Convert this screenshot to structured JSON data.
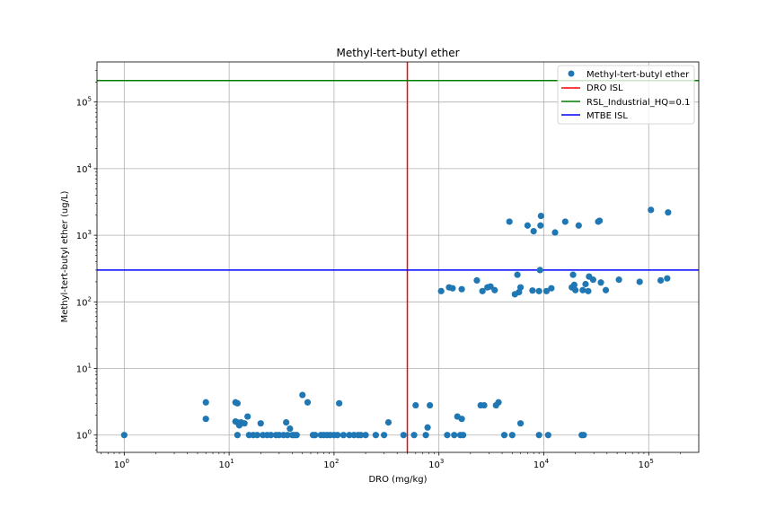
{
  "chart_data": {
    "type": "scatter",
    "title": "Methyl-tert-butyl ether",
    "xlabel": "DRO (mg/kg)",
    "ylabel": "Methyl-tert-butyl ether (ug/L)",
    "xscale": "log",
    "yscale": "log",
    "xlim": [
      0.55,
      300000
    ],
    "ylim": [
      0.55,
      400000
    ],
    "x_ticks": [
      {
        "value": 1,
        "base": "10",
        "exp": "0"
      },
      {
        "value": 10,
        "base": "10",
        "exp": "1"
      },
      {
        "value": 100,
        "base": "10",
        "exp": "2"
      },
      {
        "value": 1000,
        "base": "10",
        "exp": "3"
      },
      {
        "value": 10000,
        "base": "10",
        "exp": "4"
      },
      {
        "value": 100000,
        "base": "10",
        "exp": "5"
      }
    ],
    "y_ticks": [
      {
        "value": 1,
        "base": "10",
        "exp": "0"
      },
      {
        "value": 10,
        "base": "10",
        "exp": "1"
      },
      {
        "value": 100,
        "base": "10",
        "exp": "2"
      },
      {
        "value": 1000,
        "base": "10",
        "exp": "3"
      },
      {
        "value": 10000,
        "base": "10",
        "exp": "4"
      },
      {
        "value": 100000,
        "base": "10",
        "exp": "5"
      }
    ],
    "grid": true,
    "legend_position": "top-right",
    "series": [
      {
        "name": "Methyl-tert-butyl ether",
        "color": "#1f77b4",
        "marker": "circle",
        "points": [
          [
            1,
            1
          ],
          [
            6,
            3.1
          ],
          [
            6,
            1.75
          ],
          [
            11.5,
            3.1
          ],
          [
            12,
            3
          ],
          [
            11.5,
            1.6
          ],
          [
            12,
            1.55
          ],
          [
            12.5,
            1.4
          ],
          [
            13,
            1.55
          ],
          [
            14,
            1.5
          ],
          [
            15,
            1.9
          ],
          [
            12,
            1
          ],
          [
            15.5,
            1
          ],
          [
            17,
            1
          ],
          [
            18.5,
            1
          ],
          [
            20,
            1.5
          ],
          [
            21,
            1
          ],
          [
            23,
            1
          ],
          [
            25,
            1
          ],
          [
            28,
            1
          ],
          [
            30,
            1
          ],
          [
            33,
            1
          ],
          [
            35,
            1.55
          ],
          [
            36,
            1
          ],
          [
            38,
            1.25
          ],
          [
            40,
            1
          ],
          [
            42,
            1
          ],
          [
            44,
            1
          ],
          [
            50,
            4
          ],
          [
            56,
            3.1
          ],
          [
            63,
            1
          ],
          [
            66,
            1
          ],
          [
            75,
            1
          ],
          [
            80,
            1
          ],
          [
            86,
            1
          ],
          [
            92,
            1
          ],
          [
            100,
            1
          ],
          [
            108,
            1
          ],
          [
            112,
            3
          ],
          [
            123,
            1
          ],
          [
            140,
            1
          ],
          [
            155,
            1
          ],
          [
            170,
            1
          ],
          [
            180,
            1
          ],
          [
            200,
            1
          ],
          [
            250,
            1
          ],
          [
            300,
            1
          ],
          [
            330,
            1.55
          ],
          [
            460,
            1
          ],
          [
            580,
            1
          ],
          [
            600,
            2.8
          ],
          [
            750,
            1
          ],
          [
            780,
            1.3
          ],
          [
            820,
            2.8
          ],
          [
            1200,
            1
          ],
          [
            1400,
            1
          ],
          [
            1500,
            1.9
          ],
          [
            1600,
            1
          ],
          [
            1650,
            1.75
          ],
          [
            1700,
            1
          ],
          [
            2500,
            2.8
          ],
          [
            2700,
            2.8
          ],
          [
            3500,
            2.8
          ],
          [
            3700,
            3.1
          ],
          [
            4200,
            1
          ],
          [
            5000,
            1
          ],
          [
            6000,
            1.5
          ],
          [
            9000,
            1
          ],
          [
            11000,
            1
          ],
          [
            23000,
            1
          ],
          [
            24000,
            1
          ],
          [
            1050,
            145
          ],
          [
            1250,
            165
          ],
          [
            1350,
            160
          ],
          [
            1650,
            155
          ],
          [
            2300,
            210
          ],
          [
            2600,
            145
          ],
          [
            2900,
            165
          ],
          [
            3100,
            170
          ],
          [
            3400,
            150
          ],
          [
            4700,
            1600
          ],
          [
            5300,
            130
          ],
          [
            5600,
            255
          ],
          [
            5800,
            140
          ],
          [
            6000,
            165
          ],
          [
            7000,
            1400
          ],
          [
            7800,
            148
          ],
          [
            8000,
            1150
          ],
          [
            9000,
            145
          ],
          [
            9200,
            300
          ],
          [
            9300,
            1400
          ],
          [
            9400,
            1950
          ],
          [
            10600,
            145
          ],
          [
            11800,
            160
          ],
          [
            12800,
            1100
          ],
          [
            16000,
            1600
          ],
          [
            18500,
            165
          ],
          [
            19000,
            255
          ],
          [
            19500,
            180
          ],
          [
            20000,
            150
          ],
          [
            21500,
            1400
          ],
          [
            23500,
            150
          ],
          [
            25000,
            185
          ],
          [
            26500,
            145
          ],
          [
            27000,
            240
          ],
          [
            29500,
            215
          ],
          [
            33000,
            1600
          ],
          [
            34000,
            1650
          ],
          [
            35000,
            195
          ],
          [
            39000,
            150
          ],
          [
            52000,
            215
          ],
          [
            82000,
            200
          ],
          [
            105000,
            2400
          ],
          [
            130000,
            210
          ],
          [
            150000,
            225
          ],
          [
            153000,
            2200
          ]
        ]
      },
      {
        "name": "DRO ISL",
        "color": "#ff0000",
        "type": "vline",
        "x": 500
      },
      {
        "name": "RSL_Industrial_HQ=0.1",
        "color": "#008000",
        "type": "hline",
        "y": 210000
      },
      {
        "name": "MTBE ISL",
        "color": "#0000ff",
        "type": "hline",
        "y": 300
      }
    ]
  }
}
